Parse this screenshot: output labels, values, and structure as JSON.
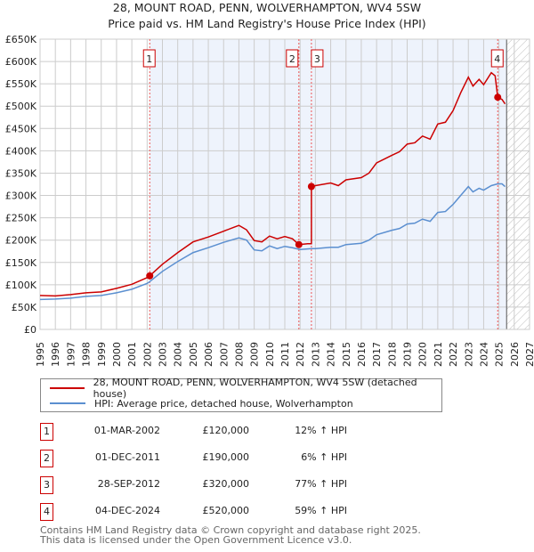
{
  "chart_data": {
    "type": "line",
    "title": "28, MOUNT ROAD, PENN, WOLVERHAMPTON, WV4 5SW",
    "subtitle": "Price paid vs. HM Land Registry's House Price Index (HPI)",
    "xlim": [
      1995,
      2027
    ],
    "ylim": [
      0,
      650000
    ],
    "x_ticks": [
      "1995",
      "1996",
      "1997",
      "1998",
      "1999",
      "2000",
      "2001",
      "2002",
      "2003",
      "2004",
      "2005",
      "2006",
      "2007",
      "2008",
      "2009",
      "2010",
      "2011",
      "2012",
      "2013",
      "2014",
      "2015",
      "2016",
      "2017",
      "2018",
      "2019",
      "2020",
      "2021",
      "2022",
      "2023",
      "2024",
      "2025",
      "2026",
      "2027"
    ],
    "y_ticks": [
      "£0",
      "£50K",
      "£100K",
      "£150K",
      "£200K",
      "£250K",
      "£300K",
      "£350K",
      "£400K",
      "£450K",
      "£500K",
      "£550K",
      "£600K",
      "£650K"
    ],
    "grid": true,
    "shaded_from": 2002.17,
    "forecast_hatch_from": 2025.5,
    "series": [
      {
        "name": "28, MOUNT ROAD, PENN, WOLVERHAMPTON, WV4 5SW (detached house)",
        "color": "#cc0000",
        "x": [
          1995,
          1996,
          1997,
          1998,
          1999,
          2000,
          2001,
          2002,
          2002.17,
          2003,
          2004,
          2005,
          2006,
          2007,
          2008,
          2008.5,
          2009,
          2009.5,
          2010,
          2010.5,
          2011,
          2011.5,
          2011.92,
          2012.5,
          2012.74,
          2012.74,
          2013,
          2014,
          2014.5,
          2015,
          2016,
          2016.5,
          2017,
          2018,
          2018.5,
          2019,
          2019.5,
          2020,
          2020.5,
          2021,
          2021.5,
          2022,
          2022.5,
          2023,
          2023.3,
          2023.7,
          2024,
          2024.5,
          2024.75,
          2024.92,
          2025.2,
          2025.4
        ],
        "y": [
          76,
          75,
          78,
          82,
          84,
          92,
          101,
          116,
          120,
          146,
          172,
          196,
          207,
          220,
          233,
          223,
          199,
          196,
          209,
          203,
          208,
          203,
          190,
          192,
          192,
          320,
          322,
          328,
          322,
          335,
          340,
          350,
          373,
          390,
          398,
          415,
          418,
          433,
          426,
          460,
          464,
          490,
          530,
          565,
          545,
          560,
          548,
          575,
          568,
          520,
          515,
          505
        ]
      },
      {
        "name": "HPI: Average price, detached house, Wolverhampton",
        "color": "#5b8fd0",
        "x": [
          1995,
          1996,
          1997,
          1998,
          1999,
          2000,
          2001,
          2002,
          2002.17,
          2003,
          2004,
          2005,
          2006,
          2007,
          2008,
          2008.5,
          2009,
          2009.5,
          2010,
          2010.5,
          2011,
          2011.5,
          2012,
          2012.75,
          2013,
          2014,
          2014.5,
          2015,
          2016,
          2016.5,
          2017,
          2018,
          2018.5,
          2019,
          2019.5,
          2020,
          2020.5,
          2021,
          2021.5,
          2022,
          2022.5,
          2023,
          2023.3,
          2023.7,
          2024,
          2024.5,
          2024.92,
          2025.2,
          2025.4
        ],
        "y": [
          67,
          68,
          70,
          74,
          76,
          82,
          90,
          103,
          107,
          130,
          152,
          172,
          183,
          195,
          205,
          200,
          178,
          176,
          187,
          181,
          186,
          183,
          179,
          181,
          181,
          184,
          184,
          190,
          193,
          200,
          212,
          222,
          226,
          236,
          238,
          247,
          242,
          262,
          264,
          280,
          300,
          320,
          308,
          316,
          312,
          322,
          326,
          326,
          320
        ]
      }
    ],
    "y_unit": "thousands GBP",
    "sales": [
      {
        "n": "1",
        "date": "01-MAR-2002",
        "price": "£120,000",
        "hpi": "12% ↑ HPI",
        "x": 2002.17,
        "y": 120
      },
      {
        "n": "2",
        "date": "01-DEC-2011",
        "price": "£190,000",
        "hpi": "6% ↑ HPI",
        "x": 2011.92,
        "y": 190
      },
      {
        "n": "3",
        "date": "28-SEP-2012",
        "price": "£320,000",
        "hpi": "77% ↑ HPI",
        "x": 2012.74,
        "y": 320
      },
      {
        "n": "4",
        "date": "04-DEC-2024",
        "price": "£520,000",
        "hpi": "59% ↑ HPI",
        "x": 2024.92,
        "y": 520
      }
    ]
  },
  "footer": {
    "line1": "Contains HM Land Registry data © Crown copyright and database right 2025.",
    "line2": "This data is licensed under the Open Government Licence v3.0."
  }
}
